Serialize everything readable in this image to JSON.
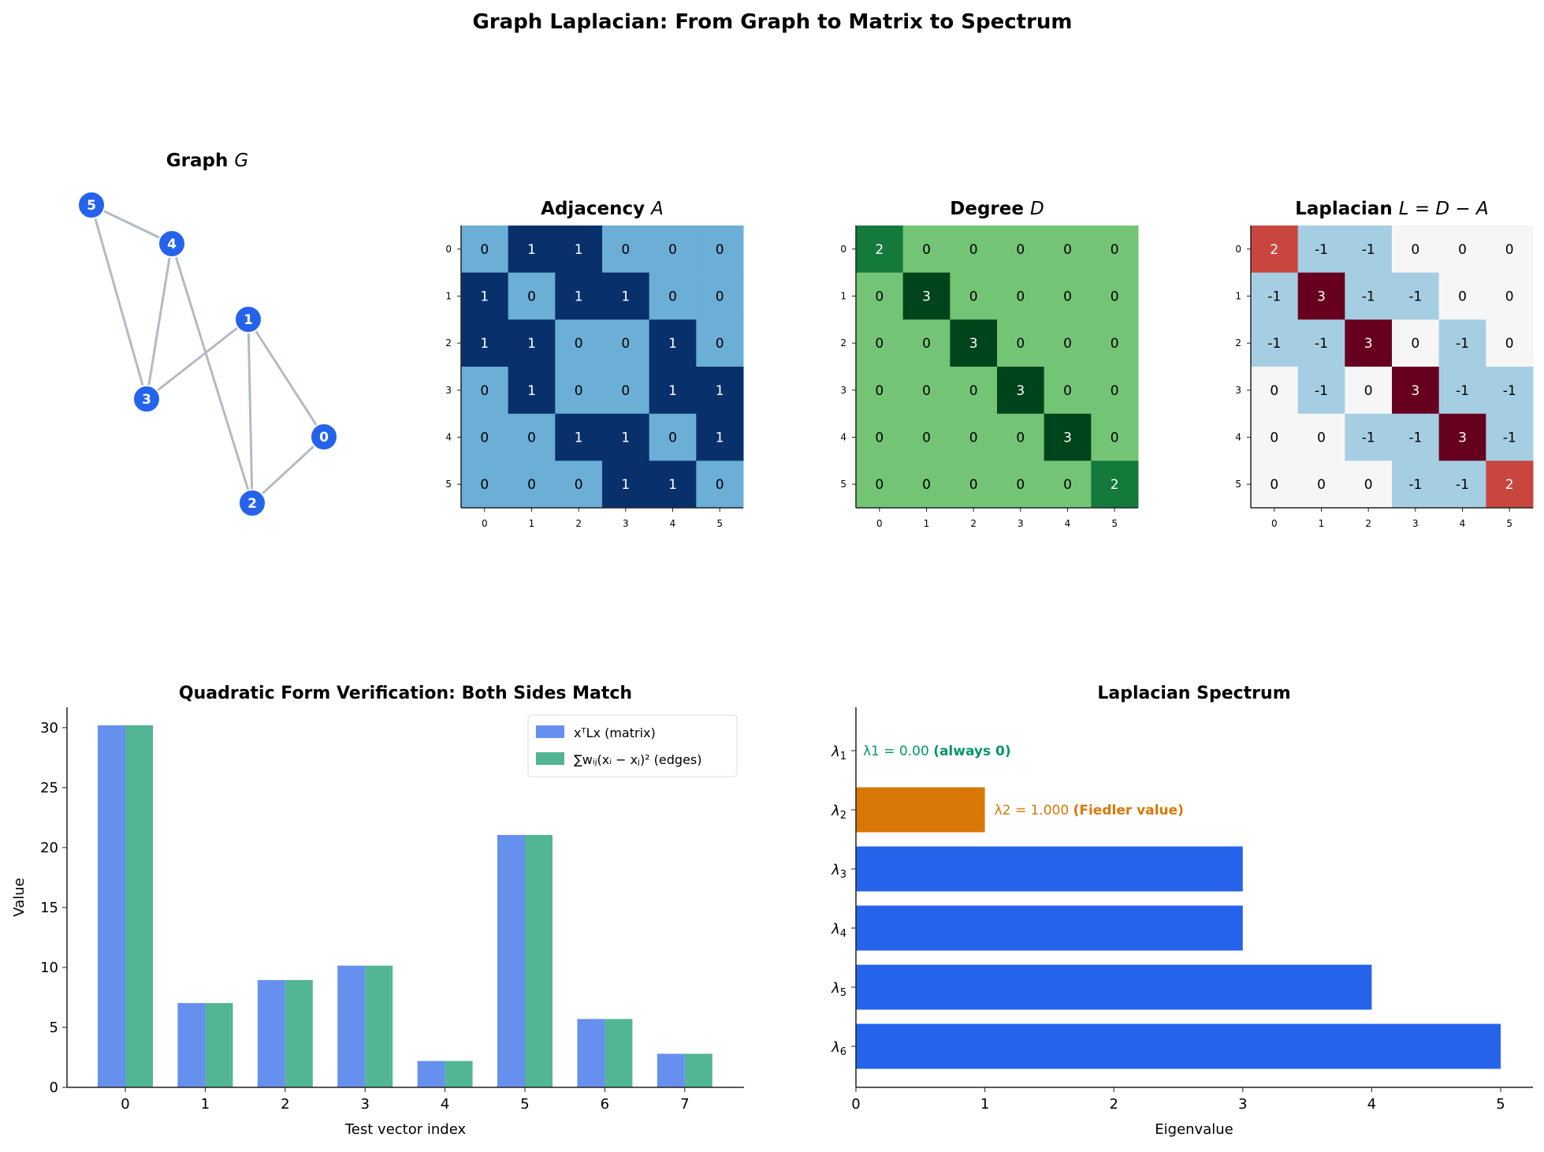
{
  "title": "Graph Laplacian: From Graph to Matrix to Spectrum",
  "chart_data": [
    {
      "type": "graph",
      "title": "Graph G",
      "nodes": [
        "0",
        "1",
        "2",
        "3",
        "4",
        "5"
      ],
      "edges": [
        [
          0,
          1
        ],
        [
          0,
          2
        ],
        [
          1,
          2
        ],
        [
          1,
          3
        ],
        [
          2,
          4
        ],
        [
          3,
          4
        ],
        [
          3,
          5
        ],
        [
          4,
          5
        ]
      ],
      "colors": {
        "node": "#2563eb",
        "edge": "#b4bac3"
      }
    },
    {
      "type": "heatmap",
      "title": "Adjacency A",
      "ticks": [
        "0",
        "1",
        "2",
        "3",
        "4",
        "5"
      ],
      "values": [
        [
          0,
          1,
          1,
          0,
          0,
          0
        ],
        [
          1,
          0,
          1,
          1,
          0,
          0
        ],
        [
          1,
          1,
          0,
          0,
          1,
          0
        ],
        [
          0,
          1,
          0,
          0,
          1,
          1
        ],
        [
          0,
          0,
          1,
          1,
          0,
          1
        ],
        [
          0,
          0,
          0,
          1,
          1,
          0
        ]
      ],
      "colormap": {
        "0": "#6baed6",
        "1": "#08306b"
      }
    },
    {
      "type": "heatmap",
      "title": "Degree D",
      "ticks": [
        "0",
        "1",
        "2",
        "3",
        "4",
        "5"
      ],
      "values": [
        [
          2,
          0,
          0,
          0,
          0,
          0
        ],
        [
          0,
          3,
          0,
          0,
          0,
          0
        ],
        [
          0,
          0,
          3,
          0,
          0,
          0
        ],
        [
          0,
          0,
          0,
          3,
          0,
          0
        ],
        [
          0,
          0,
          0,
          0,
          3,
          0
        ],
        [
          0,
          0,
          0,
          0,
          0,
          2
        ]
      ],
      "colormap": {
        "0": "#74c476",
        "2": "#137a3c",
        "3": "#00441b"
      }
    },
    {
      "type": "heatmap",
      "title": "Laplacian L = D − A",
      "ticks": [
        "0",
        "1",
        "2",
        "3",
        "4",
        "5"
      ],
      "values": [
        [
          2,
          -1,
          -1,
          0,
          0,
          0
        ],
        [
          -1,
          3,
          -1,
          -1,
          0,
          0
        ],
        [
          -1,
          -1,
          3,
          0,
          -1,
          0
        ],
        [
          0,
          -1,
          0,
          3,
          -1,
          -1
        ],
        [
          0,
          0,
          -1,
          -1,
          3,
          -1
        ],
        [
          0,
          0,
          0,
          -1,
          -1,
          2
        ]
      ],
      "colormap": {
        "-1": "#a6cee3",
        "0": "#f6f6f6",
        "2": "#c9463f",
        "3": "#67001f"
      }
    },
    {
      "type": "bar",
      "title": "Quadratic Form Verification: Both Sides Match",
      "xlabel": "Test vector index",
      "ylabel": "Value",
      "categories": [
        "0",
        "1",
        "2",
        "3",
        "4",
        "5",
        "6",
        "7"
      ],
      "yticks": [
        "0",
        "5",
        "10",
        "15",
        "20",
        "25",
        "30"
      ],
      "ylim": [
        0,
        31.7
      ],
      "legend": "top-right",
      "series": [
        {
          "name": "xᵀLx (matrix)",
          "color": "#6690ee",
          "values": [
            30.2,
            7.03,
            8.95,
            10.15,
            2.2,
            21.05,
            5.7,
            2.8
          ]
        },
        {
          "name": "∑wᵢⱼ(xᵢ − xⱼ)² (edges)",
          "color": "#52b594",
          "values": [
            30.2,
            7.03,
            8.95,
            10.15,
            2.2,
            21.05,
            5.7,
            2.8
          ]
        }
      ]
    },
    {
      "type": "bar",
      "orientation": "horizontal",
      "title": "Laplacian Spectrum",
      "xlabel": "Eigenvalue",
      "categories": [
        "λ1",
        "λ2",
        "λ3",
        "λ4",
        "λ5",
        "λ6"
      ],
      "values": [
        0,
        1,
        3,
        3,
        4,
        5
      ],
      "xticks": [
        "0",
        "1",
        "2",
        "3",
        "4",
        "5"
      ],
      "xlim": [
        0,
        5.25
      ],
      "colors": {
        "default": "#2563eb",
        "fiedler": "#d97706",
        "zero": "#059669"
      },
      "annotations": [
        {
          "text": "λ1 = 0.00",
          "bold": "(always 0)"
        },
        {
          "text": "λ2 = 1.000",
          "bold": "(Fiedler value)"
        }
      ]
    }
  ]
}
